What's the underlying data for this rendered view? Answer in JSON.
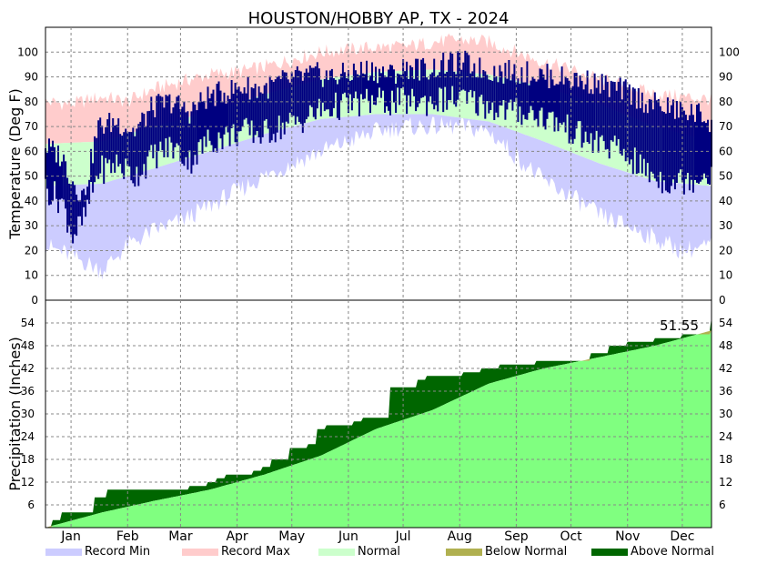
{
  "chart_data": [
    {
      "type": "bar",
      "panel": "temperature",
      "title": "HOUSTON/HOBBY AP, TX - 2024",
      "ylabel": "Temperature (Deg F)",
      "ylim": [
        0,
        110
      ],
      "yticks": [
        0,
        10,
        20,
        30,
        40,
        50,
        60,
        70,
        80,
        90,
        100
      ],
      "grid": true,
      "x_months": [
        {
          "label": "Jan",
          "day": 15
        },
        {
          "label": "Feb",
          "day": 46
        },
        {
          "label": "Mar",
          "day": 75
        },
        {
          "label": "Apr",
          "day": 106
        },
        {
          "label": "May",
          "day": 136
        },
        {
          "label": "Jun",
          "day": 167
        },
        {
          "label": "Jul",
          "day": 197
        },
        {
          "label": "Aug",
          "day": 228
        },
        {
          "label": "Sep",
          "day": 259
        },
        {
          "label": "Oct",
          "day": 289
        },
        {
          "label": "Nov",
          "day": 320
        },
        {
          "label": "Dec",
          "day": 350
        }
      ],
      "series": [
        {
          "name": "Record Max",
          "color": "#ffcccc",
          "points": [
            [
              1,
              80
            ],
            [
              15,
              79
            ],
            [
              32,
              82
            ],
            [
              46,
              80
            ],
            [
              60,
              85
            ],
            [
              75,
              88
            ],
            [
              91,
              91
            ],
            [
              106,
              92
            ],
            [
              121,
              94
            ],
            [
              136,
              97
            ],
            [
              152,
              100
            ],
            [
              167,
              101
            ],
            [
              182,
              102
            ],
            [
              197,
              102
            ],
            [
              213,
              104
            ],
            [
              228,
              105
            ],
            [
              244,
              104
            ],
            [
              259,
              100
            ],
            [
              274,
              96
            ],
            [
              289,
              93
            ],
            [
              305,
              89
            ],
            [
              320,
              86
            ],
            [
              335,
              83
            ],
            [
              350,
              82
            ],
            [
              366,
              81
            ]
          ]
        },
        {
          "name": "Record Min",
          "color": "#ccccff",
          "points": [
            [
              1,
              22
            ],
            [
              15,
              18
            ],
            [
              32,
              12
            ],
            [
              46,
              22
            ],
            [
              60,
              28
            ],
            [
              75,
              32
            ],
            [
              91,
              38
            ],
            [
              106,
              44
            ],
            [
              121,
              50
            ],
            [
              136,
              55
            ],
            [
              152,
              60
            ],
            [
              167,
              64
            ],
            [
              182,
              68
            ],
            [
              197,
              70
            ],
            [
              213,
              70
            ],
            [
              228,
              70
            ],
            [
              244,
              68
            ],
            [
              259,
              58
            ],
            [
              274,
              48
            ],
            [
              289,
              42
            ],
            [
              305,
              34
            ],
            [
              320,
              30
            ],
            [
              335,
              25
            ],
            [
              350,
              20
            ],
            [
              366,
              22
            ]
          ]
        },
        {
          "name": "Normal",
          "color": "#ccffcc",
          "high": [
            [
              1,
              63
            ],
            [
              32,
              64
            ],
            [
              60,
              70
            ],
            [
              91,
              76
            ],
            [
              121,
              83
            ],
            [
              152,
              89
            ],
            [
              182,
              92
            ],
            [
              213,
              93
            ],
            [
              244,
              91
            ],
            [
              274,
              86
            ],
            [
              305,
              79
            ],
            [
              335,
              70
            ],
            [
              366,
              64
            ]
          ],
          "low": [
            [
              1,
              46
            ],
            [
              32,
              47
            ],
            [
              60,
              53
            ],
            [
              91,
              60
            ],
            [
              121,
              67
            ],
            [
              152,
              73
            ],
            [
              182,
              75
            ],
            [
              213,
              75
            ],
            [
              244,
              72
            ],
            [
              274,
              64
            ],
            [
              305,
              55
            ],
            [
              335,
              48
            ],
            [
              366,
              46
            ]
          ]
        },
        {
          "name": "Actual",
          "color": "#000080",
          "high": [
            [
              1,
              62
            ],
            [
              10,
              58
            ],
            [
              16,
              48
            ],
            [
              22,
              42
            ],
            [
              30,
              70
            ],
            [
              40,
              72
            ],
            [
              50,
              68
            ],
            [
              60,
              78
            ],
            [
              70,
              80
            ],
            [
              80,
              76
            ],
            [
              90,
              82
            ],
            [
              100,
              84
            ],
            [
              110,
              86
            ],
            [
              120,
              85
            ],
            [
              130,
              88
            ],
            [
              140,
              90
            ],
            [
              150,
              91
            ],
            [
              160,
              90
            ],
            [
              170,
              92
            ],
            [
              180,
              93
            ],
            [
              190,
              91
            ],
            [
              200,
              94
            ],
            [
              210,
              93
            ],
            [
              220,
              95
            ],
            [
              230,
              96
            ],
            [
              240,
              93
            ],
            [
              250,
              92
            ],
            [
              260,
              92
            ],
            [
              270,
              91
            ],
            [
              280,
              90
            ],
            [
              290,
              89
            ],
            [
              300,
              88
            ],
            [
              310,
              86
            ],
            [
              320,
              84
            ],
            [
              330,
              80
            ],
            [
              340,
              78
            ],
            [
              350,
              76
            ],
            [
              360,
              75
            ],
            [
              366,
              72
            ]
          ],
          "low": [
            [
              1,
              45
            ],
            [
              10,
              40
            ],
            [
              16,
              26
            ],
            [
              22,
              32
            ],
            [
              30,
              52
            ],
            [
              40,
              55
            ],
            [
              50,
              50
            ],
            [
              60,
              58
            ],
            [
              70,
              62
            ],
            [
              80,
              56
            ],
            [
              90,
              64
            ],
            [
              100,
              66
            ],
            [
              110,
              68
            ],
            [
              120,
              67
            ],
            [
              130,
              70
            ],
            [
              140,
              72
            ],
            [
              150,
              76
            ],
            [
              160,
              78
            ],
            [
              170,
              79
            ],
            [
              180,
              80
            ],
            [
              190,
              80
            ],
            [
              200,
              80
            ],
            [
              210,
              80
            ],
            [
              220,
              81
            ],
            [
              230,
              81
            ],
            [
              240,
              79
            ],
            [
              250,
              77
            ],
            [
              260,
              76
            ],
            [
              270,
              75
            ],
            [
              280,
              72
            ],
            [
              290,
              68
            ],
            [
              300,
              64
            ],
            [
              310,
              62
            ],
            [
              320,
              58
            ],
            [
              330,
              52
            ],
            [
              340,
              48
            ],
            [
              350,
              48
            ],
            [
              360,
              50
            ],
            [
              366,
              52
            ]
          ]
        }
      ]
    },
    {
      "type": "area",
      "panel": "precipitation",
      "ylabel": "Precipitation (Inches)",
      "ylim": [
        0,
        60
      ],
      "yticks": [
        6,
        12,
        18,
        24,
        30,
        36,
        42,
        48,
        54
      ],
      "grid": true,
      "annotation": "51.55",
      "series": [
        {
          "name": "Normal",
          "color": "#80ff80",
          "points": [
            [
              1,
              0
            ],
            [
              32,
              4
            ],
            [
              60,
              7
            ],
            [
              91,
              10
            ],
            [
              121,
              14
            ],
            [
              152,
              19
            ],
            [
              182,
              26
            ],
            [
              213,
              31
            ],
            [
              244,
              38
            ],
            [
              274,
              42
            ],
            [
              305,
              45
            ],
            [
              335,
              48
            ],
            [
              366,
              52
            ]
          ]
        },
        {
          "name": "Actual",
          "color": "#006600",
          "points": [
            [
              1,
              0
            ],
            [
              5,
              2
            ],
            [
              10,
              4
            ],
            [
              25,
              4
            ],
            [
              28,
              8
            ],
            [
              35,
              10
            ],
            [
              60,
              10
            ],
            [
              70,
              10
            ],
            [
              80,
              11
            ],
            [
              90,
              12
            ],
            [
              95,
              13
            ],
            [
              100,
              14
            ],
            [
              115,
              15
            ],
            [
              120,
              16
            ],
            [
              125,
              18
            ],
            [
              135,
              21
            ],
            [
              145,
              22
            ],
            [
              150,
              26
            ],
            [
              155,
              27
            ],
            [
              165,
              27
            ],
            [
              170,
              28
            ],
            [
              175,
              29
            ],
            [
              185,
              29
            ],
            [
              190,
              37
            ],
            [
              200,
              37
            ],
            [
              205,
              39
            ],
            [
              210,
              40
            ],
            [
              230,
              41
            ],
            [
              240,
              42
            ],
            [
              250,
              43
            ],
            [
              260,
              43
            ],
            [
              270,
              44
            ],
            [
              280,
              44
            ],
            [
              290,
              44
            ],
            [
              300,
              46
            ],
            [
              310,
              48
            ],
            [
              320,
              49
            ],
            [
              335,
              50
            ],
            [
              350,
              51
            ],
            [
              366,
              55.5
            ]
          ]
        }
      ]
    }
  ],
  "legend": [
    {
      "label": "Record Min",
      "color": "#ccccff"
    },
    {
      "label": "Record Max",
      "color": "#ffcccc"
    },
    {
      "label": "Normal",
      "color": "#ccffcc"
    },
    {
      "label": "Below Normal",
      "color": "#b0b050"
    },
    {
      "label": "Above Normal",
      "color": "#006600"
    }
  ]
}
